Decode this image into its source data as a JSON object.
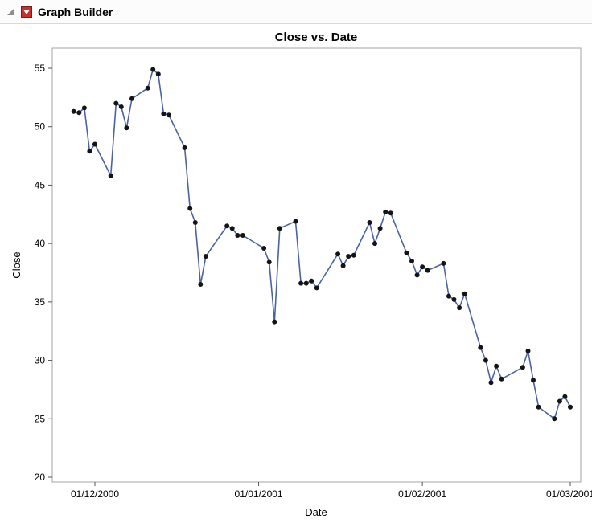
{
  "window": {
    "title": "Graph Builder",
    "icons": {
      "disclosure": "open-disclosure-triangle",
      "hotspot": "red-hotspot-menu-triangle"
    }
  },
  "chart_data": {
    "type": "line",
    "title": "Close vs. Date",
    "xlabel": "Date",
    "ylabel": "Close",
    "ylim": [
      20,
      55
    ],
    "y_ticks": [
      55,
      50,
      45,
      40,
      35,
      30,
      25,
      20
    ],
    "x_ticks": [
      "01/12/2000",
      "01/01/2001",
      "01/02/2001",
      "01/03/2001"
    ],
    "date_format": "DD/MM/YYYY",
    "grid": false,
    "legend": false,
    "line_color": "#4a63a3",
    "marker_color": "#141414",
    "frame_color": "#a6a6a6",
    "tick_color": "#555555",
    "points": [
      {
        "date": "27/11/2000",
        "close": 51.3
      },
      {
        "date": "28/11/2000",
        "close": 51.2
      },
      {
        "date": "29/11/2000",
        "close": 51.6
      },
      {
        "date": "30/11/2000",
        "close": 47.9
      },
      {
        "date": "01/12/2000",
        "close": 48.5
      },
      {
        "date": "04/12/2000",
        "close": 45.8
      },
      {
        "date": "05/12/2000",
        "close": 52.0
      },
      {
        "date": "06/12/2000",
        "close": 51.7
      },
      {
        "date": "07/12/2000",
        "close": 49.9
      },
      {
        "date": "08/12/2000",
        "close": 52.4
      },
      {
        "date": "11/12/2000",
        "close": 53.3
      },
      {
        "date": "12/12/2000",
        "close": 54.9
      },
      {
        "date": "13/12/2000",
        "close": 54.5
      },
      {
        "date": "14/12/2000",
        "close": 51.1
      },
      {
        "date": "15/12/2000",
        "close": 51.0
      },
      {
        "date": "18/12/2000",
        "close": 48.2
      },
      {
        "date": "19/12/2000",
        "close": 43.0
      },
      {
        "date": "20/12/2000",
        "close": 41.8
      },
      {
        "date": "21/12/2000",
        "close": 36.5
      },
      {
        "date": "22/12/2000",
        "close": 38.9
      },
      {
        "date": "26/12/2000",
        "close": 41.5
      },
      {
        "date": "27/12/2000",
        "close": 41.3
      },
      {
        "date": "28/12/2000",
        "close": 40.7
      },
      {
        "date": "29/12/2000",
        "close": 40.7
      },
      {
        "date": "02/01/2001",
        "close": 39.6
      },
      {
        "date": "03/01/2001",
        "close": 38.4
      },
      {
        "date": "04/01/2001",
        "close": 33.3
      },
      {
        "date": "05/01/2001",
        "close": 41.3
      },
      {
        "date": "08/01/2001",
        "close": 41.9
      },
      {
        "date": "09/01/2001",
        "close": 36.6
      },
      {
        "date": "10/01/2001",
        "close": 36.6
      },
      {
        "date": "11/01/2001",
        "close": 36.8
      },
      {
        "date": "12/01/2001",
        "close": 36.2
      },
      {
        "date": "16/01/2001",
        "close": 39.1
      },
      {
        "date": "17/01/2001",
        "close": 38.1
      },
      {
        "date": "18/01/2001",
        "close": 38.9
      },
      {
        "date": "19/01/2001",
        "close": 39.0
      },
      {
        "date": "22/01/2001",
        "close": 41.8
      },
      {
        "date": "23/01/2001",
        "close": 40.0
      },
      {
        "date": "24/01/2001",
        "close": 41.3
      },
      {
        "date": "25/01/2001",
        "close": 42.7
      },
      {
        "date": "26/01/2001",
        "close": 42.6
      },
      {
        "date": "29/01/2001",
        "close": 39.2
      },
      {
        "date": "30/01/2001",
        "close": 38.5
      },
      {
        "date": "31/01/2001",
        "close": 37.3
      },
      {
        "date": "01/02/2001",
        "close": 38.0
      },
      {
        "date": "02/02/2001",
        "close": 37.7
      },
      {
        "date": "05/02/2001",
        "close": 38.3
      },
      {
        "date": "06/02/2001",
        "close": 35.5
      },
      {
        "date": "07/02/2001",
        "close": 35.2
      },
      {
        "date": "08/02/2001",
        "close": 34.5
      },
      {
        "date": "09/02/2001",
        "close": 35.7
      },
      {
        "date": "12/02/2001",
        "close": 31.1
      },
      {
        "date": "13/02/2001",
        "close": 30.0
      },
      {
        "date": "14/02/2001",
        "close": 28.1
      },
      {
        "date": "15/02/2001",
        "close": 29.5
      },
      {
        "date": "16/02/2001",
        "close": 28.4
      },
      {
        "date": "20/02/2001",
        "close": 29.4
      },
      {
        "date": "21/02/2001",
        "close": 30.8
      },
      {
        "date": "22/02/2001",
        "close": 28.3
      },
      {
        "date": "23/02/2001",
        "close": 26.0
      },
      {
        "date": "26/02/2001",
        "close": 25.0
      },
      {
        "date": "27/02/2001",
        "close": 26.5
      },
      {
        "date": "28/02/2001",
        "close": 26.9
      },
      {
        "date": "01/03/2001",
        "close": 26.0
      }
    ]
  }
}
